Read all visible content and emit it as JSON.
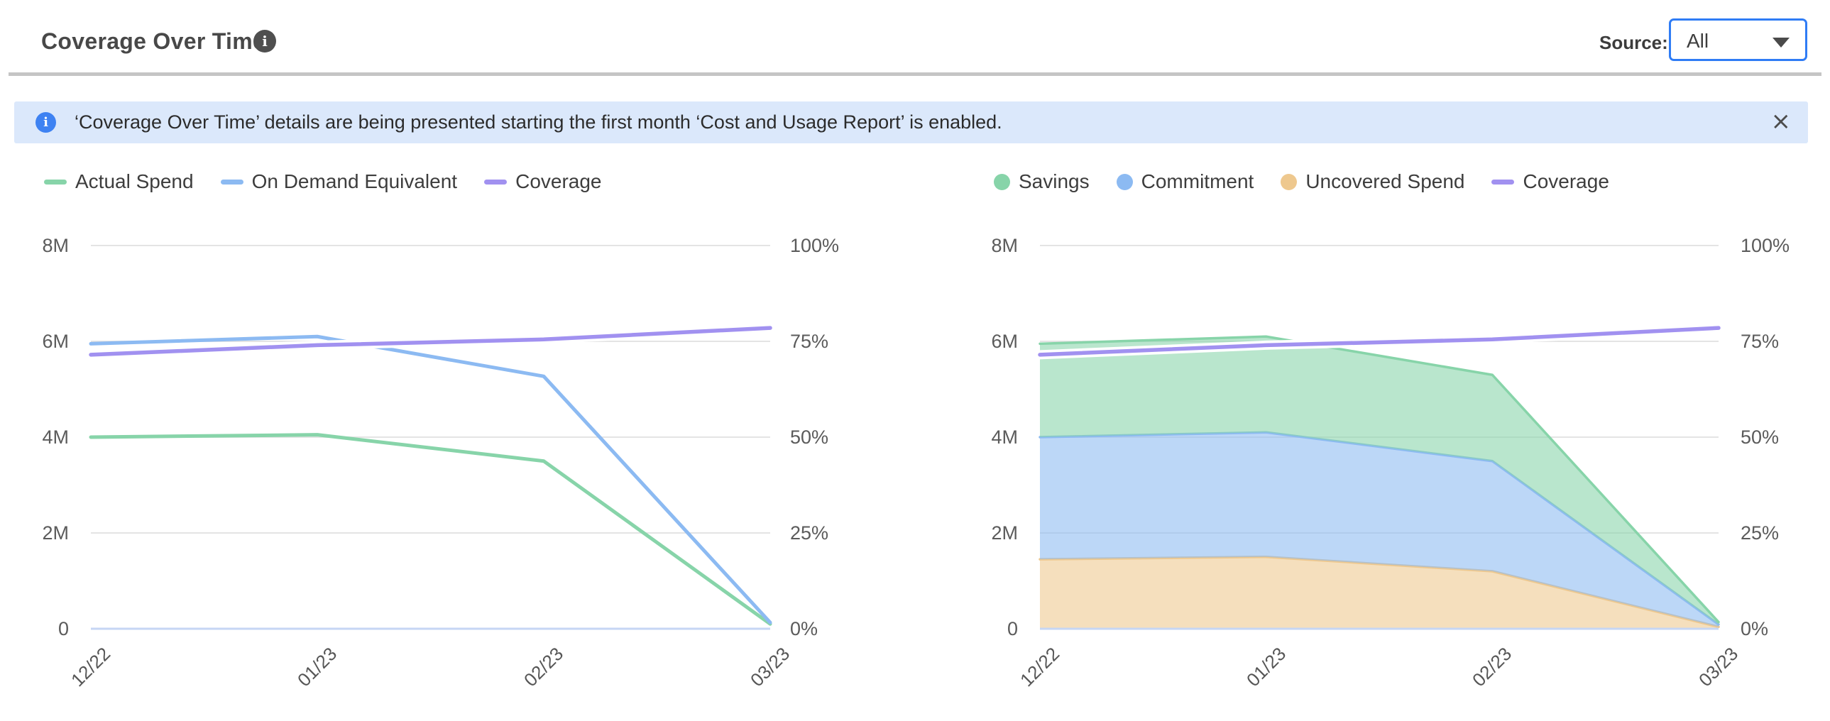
{
  "header": {
    "title": "Coverage Over Time",
    "info_glyph": "i",
    "source_label": "Source:",
    "source_value": "All"
  },
  "banner": {
    "info_glyph": "i",
    "text": "‘Coverage Over Time’ details are being presented starting the first month ‘Cost and Usage Report’ is enabled.",
    "close_glyph": "×"
  },
  "colors": {
    "accent_blue": "#2f7cf5",
    "banner_bg": "#dbe8fb",
    "banner_icon_blue": "#3e82f2",
    "header_icon_gray": "#4f4f4f",
    "grid_line": "#e4e4e4",
    "axis_baseline": "#c6d6f4",
    "axis_text": "#5b5b5b",
    "legend_text": "#3d3d3d"
  },
  "chart_data": [
    {
      "name": "spend-coverage-line-chart",
      "type": "line",
      "x": [
        "12/22",
        "01/23",
        "02/23",
        "03/23"
      ],
      "series": [
        {
          "name": "Actual Spend",
          "color": "#87d4a9",
          "swatch": "line",
          "render": "line",
          "axis": "left",
          "unit": "M",
          "values": [
            4.0,
            4.05,
            3.5,
            0.1
          ]
        },
        {
          "name": "On Demand Equivalent",
          "color": "#8cbaf2",
          "swatch": "line",
          "render": "line",
          "axis": "left",
          "unit": "M",
          "values": [
            5.95,
            6.1,
            5.27,
            0.13
          ]
        },
        {
          "name": "Coverage",
          "color": "#a191f0",
          "swatch": "line",
          "render": "line",
          "axis": "right",
          "unit": "%",
          "values": [
            71.5,
            74,
            75.5,
            78.5
          ]
        }
      ],
      "left_axis": {
        "ticks": [
          "0",
          "2M",
          "4M",
          "6M",
          "8M"
        ],
        "min": 0,
        "max": 8
      },
      "right_axis": {
        "ticks": [
          "0%",
          "25%",
          "50%",
          "75%",
          "100%"
        ],
        "min": 0,
        "max": 100
      },
      "grid": true,
      "legend_position": "top-left"
    },
    {
      "name": "savings-breakdown-area-chart",
      "type": "area",
      "stacked": true,
      "x": [
        "12/22",
        "01/23",
        "02/23",
        "03/23"
      ],
      "series": [
        {
          "name": "Savings",
          "color": "#87d4a9",
          "swatch": "dot",
          "render": "area",
          "stack_order": 3,
          "axis": "left",
          "unit": "M",
          "values": [
            1.95,
            2.0,
            1.8,
            0.05
          ]
        },
        {
          "name": "Commitment",
          "color": "#8cbaf2",
          "swatch": "dot",
          "render": "area",
          "stack_order": 2,
          "axis": "left",
          "unit": "M",
          "values": [
            2.55,
            2.6,
            2.3,
            0.05
          ]
        },
        {
          "name": "Uncovered Spend",
          "color": "#eec88e",
          "swatch": "dot",
          "render": "area",
          "stack_order": 1,
          "axis": "left",
          "unit": "M",
          "values": [
            1.45,
            1.5,
            1.2,
            0.04
          ]
        },
        {
          "name": "Coverage",
          "color": "#a191f0",
          "swatch": "line",
          "render": "line",
          "axis": "right",
          "unit": "%",
          "values": [
            71.5,
            74,
            75.5,
            78.5
          ]
        }
      ],
      "left_axis": {
        "ticks": [
          "0",
          "2M",
          "4M",
          "6M",
          "8M"
        ],
        "min": 0,
        "max": 8
      },
      "right_axis": {
        "ticks": [
          "0%",
          "25%",
          "50%",
          "75%",
          "100%"
        ],
        "min": 0,
        "max": 100
      },
      "grid": true,
      "legend_position": "top-left"
    }
  ]
}
